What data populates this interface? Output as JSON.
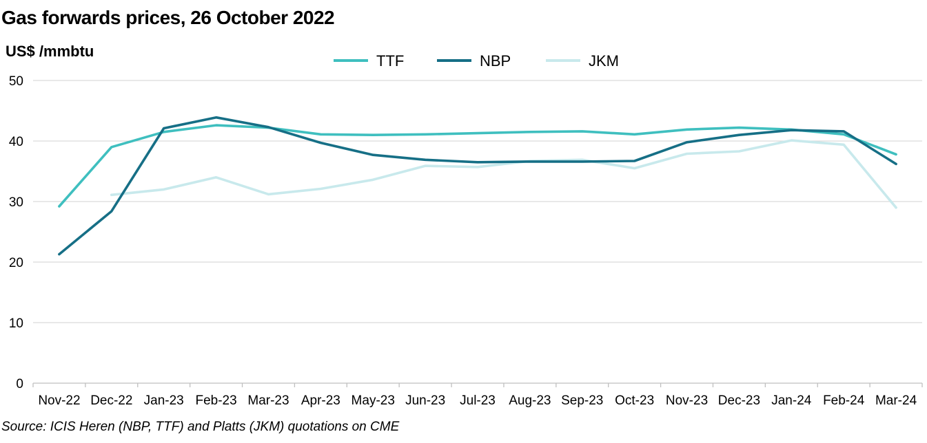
{
  "title": "Gas forwards prices, 26 October 2022",
  "unit_label": "US$ /mmbtu",
  "source": "Source: ICIS Heren (NBP, TTF) and Platts (JKM) quotations on CME",
  "colors": {
    "TTF": "#3fbfbf",
    "NBP": "#166f86",
    "JKM": "#c8e9ec",
    "grid": "#d9d9d9"
  },
  "chart_data": {
    "type": "line",
    "categories": [
      "Nov-22",
      "Dec-22",
      "Jan-23",
      "Feb-23",
      "Mar-23",
      "Apr-23",
      "May-23",
      "Jun-23",
      "Jul-23",
      "Aug-23",
      "Sep-23",
      "Oct-23",
      "Nov-23",
      "Dec-23",
      "Jan-24",
      "Feb-24",
      "Mar-24"
    ],
    "ylim": [
      0,
      50
    ],
    "yticks": [
      "0",
      "10",
      "20",
      "30",
      "40",
      "50"
    ],
    "grid": true,
    "legend_position": "top-center",
    "series": [
      {
        "name": "TTF",
        "values": [
          29.2,
          39.0,
          41.5,
          42.6,
          42.2,
          41.1,
          41.0,
          41.1,
          41.3,
          41.5,
          41.6,
          41.1,
          41.9,
          42.2,
          41.9,
          41.1,
          37.8
        ]
      },
      {
        "name": "NBP",
        "values": [
          21.3,
          28.4,
          42.1,
          43.9,
          42.3,
          39.7,
          37.7,
          36.9,
          36.5,
          36.6,
          36.6,
          36.7,
          39.8,
          41.0,
          41.8,
          41.6,
          36.2
        ]
      },
      {
        "name": "JKM",
        "values": [
          null,
          31.1,
          32.0,
          34.0,
          31.2,
          32.1,
          33.6,
          35.9,
          35.7,
          36.7,
          36.9,
          35.5,
          37.9,
          38.3,
          40.1,
          39.4,
          29.0
        ]
      }
    ]
  }
}
